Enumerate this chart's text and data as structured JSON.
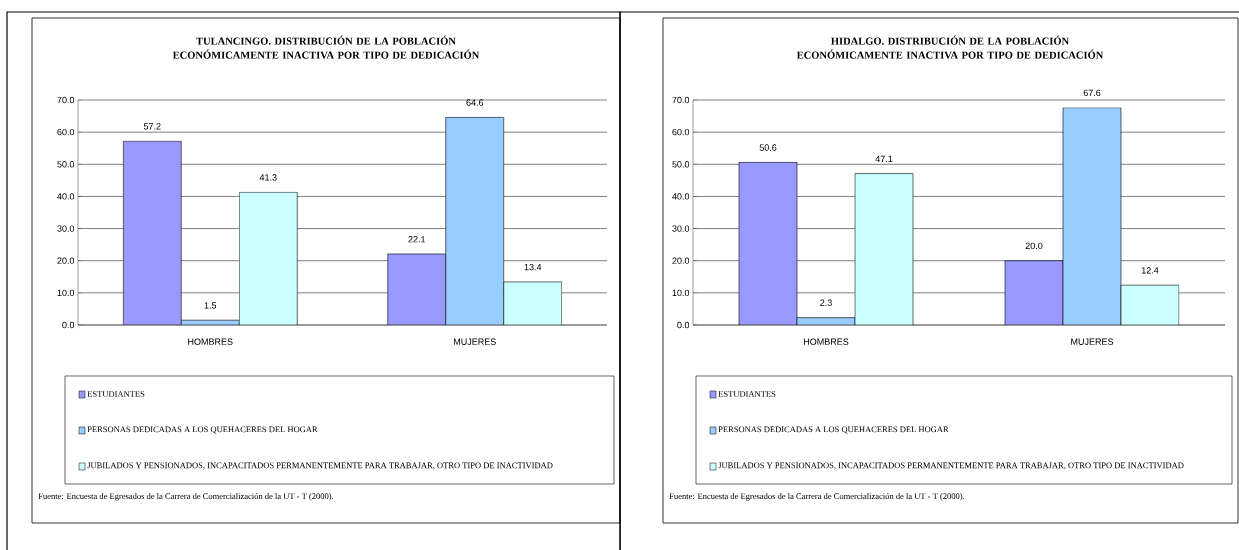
{
  "chart_data": [
    {
      "type": "bar",
      "title": "TULANCINGO. DISTRIBUCIÓN DE LA POBLACIÓN ECONÓMICAMENTE INACTIVA POR TIPO DE DEDICACIÓN",
      "categories": [
        "HOMBRES",
        "MUJERES"
      ],
      "series": [
        {
          "name": "ESTUDIANTES",
          "color": "#9999ff",
          "values": [
            57.2,
            22.1
          ],
          "value_labels": [
            "57.2",
            "22.1"
          ]
        },
        {
          "name": "PERSONAS DEDICADAS A LOS QUEHACERES DEL HOGAR",
          "color": "#99ccff",
          "values": [
            1.5,
            64.6
          ],
          "value_labels": [
            "1.5",
            "64.6"
          ]
        },
        {
          "name": "JUBILADOS Y PENSIONADOS, INCAPACITADOS PERMANENTEMENTE PARA TRABAJAR, OTRO TIPO DE INACTIVIDAD",
          "color": "#ccffff",
          "values": [
            41.3,
            13.4
          ],
          "value_labels": [
            "41.3",
            "13.4"
          ]
        }
      ],
      "ylim": [
        0,
        70
      ],
      "yticks": [
        {
          "value": 0,
          "label": "0.0"
        },
        {
          "value": 10,
          "label": "10.0"
        },
        {
          "value": 20,
          "label": "20.0"
        },
        {
          "value": 30,
          "label": "30.0"
        },
        {
          "value": 40,
          "label": "40.0"
        },
        {
          "value": 50,
          "label": "50.0"
        },
        {
          "value": 60,
          "label": "60.0"
        },
        {
          "value": 70,
          "label": "70.0"
        }
      ],
      "grid": "y",
      "legend": "bottom",
      "annotations": [
        "Fuente: Encuesta de Egresados de la Carrera de Comercialización de la UT - T (2000)."
      ]
    },
    {
      "type": "bar",
      "title": "HIDALGO. DISTRIBUCIÓN DE LA POBLACIÓN ECONÓMICAMENTE INACTIVA POR TIPO DE DEDICACIÓN",
      "categories": [
        "HOMBRES",
        "MUJERES"
      ],
      "series": [
        {
          "name": "ESTUDIANTES",
          "color": "#9999ff",
          "values": [
            50.6,
            20.0
          ],
          "value_labels": [
            "50.6",
            "20.0"
          ]
        },
        {
          "name": "PERSONAS DEDICADAS A LOS QUEHACERES DEL HOGAR",
          "color": "#99ccff",
          "values": [
            2.3,
            67.6
          ],
          "value_labels": [
            "2.3",
            "67.6"
          ]
        },
        {
          "name": "JUBILADOS Y PENSIONADOS, INCAPACITADOS PERMANENTEMENTE PARA TRABAJAR, OTRO TIPO DE INACTIVIDAD",
          "color": "#ccffff",
          "values": [
            47.1,
            12.4
          ],
          "value_labels": [
            "47.1",
            "12.4"
          ]
        }
      ],
      "ylim": [
        0,
        70
      ],
      "yticks": [
        {
          "value": 0,
          "label": "0.0"
        },
        {
          "value": 10,
          "label": "10.0"
        },
        {
          "value": 20,
          "label": "20.0"
        },
        {
          "value": 30,
          "label": "30.0"
        },
        {
          "value": 40,
          "label": "40.0"
        },
        {
          "value": 50,
          "label": "50.0"
        },
        {
          "value": 60,
          "label": "60.0"
        },
        {
          "value": 70,
          "label": "70.0"
        }
      ],
      "grid": "y",
      "legend": "bottom",
      "annotations": [
        "Fuente: Encuesta de Egresados de la Carrera de Comercialización de la UT - T (2000)."
      ]
    }
  ]
}
